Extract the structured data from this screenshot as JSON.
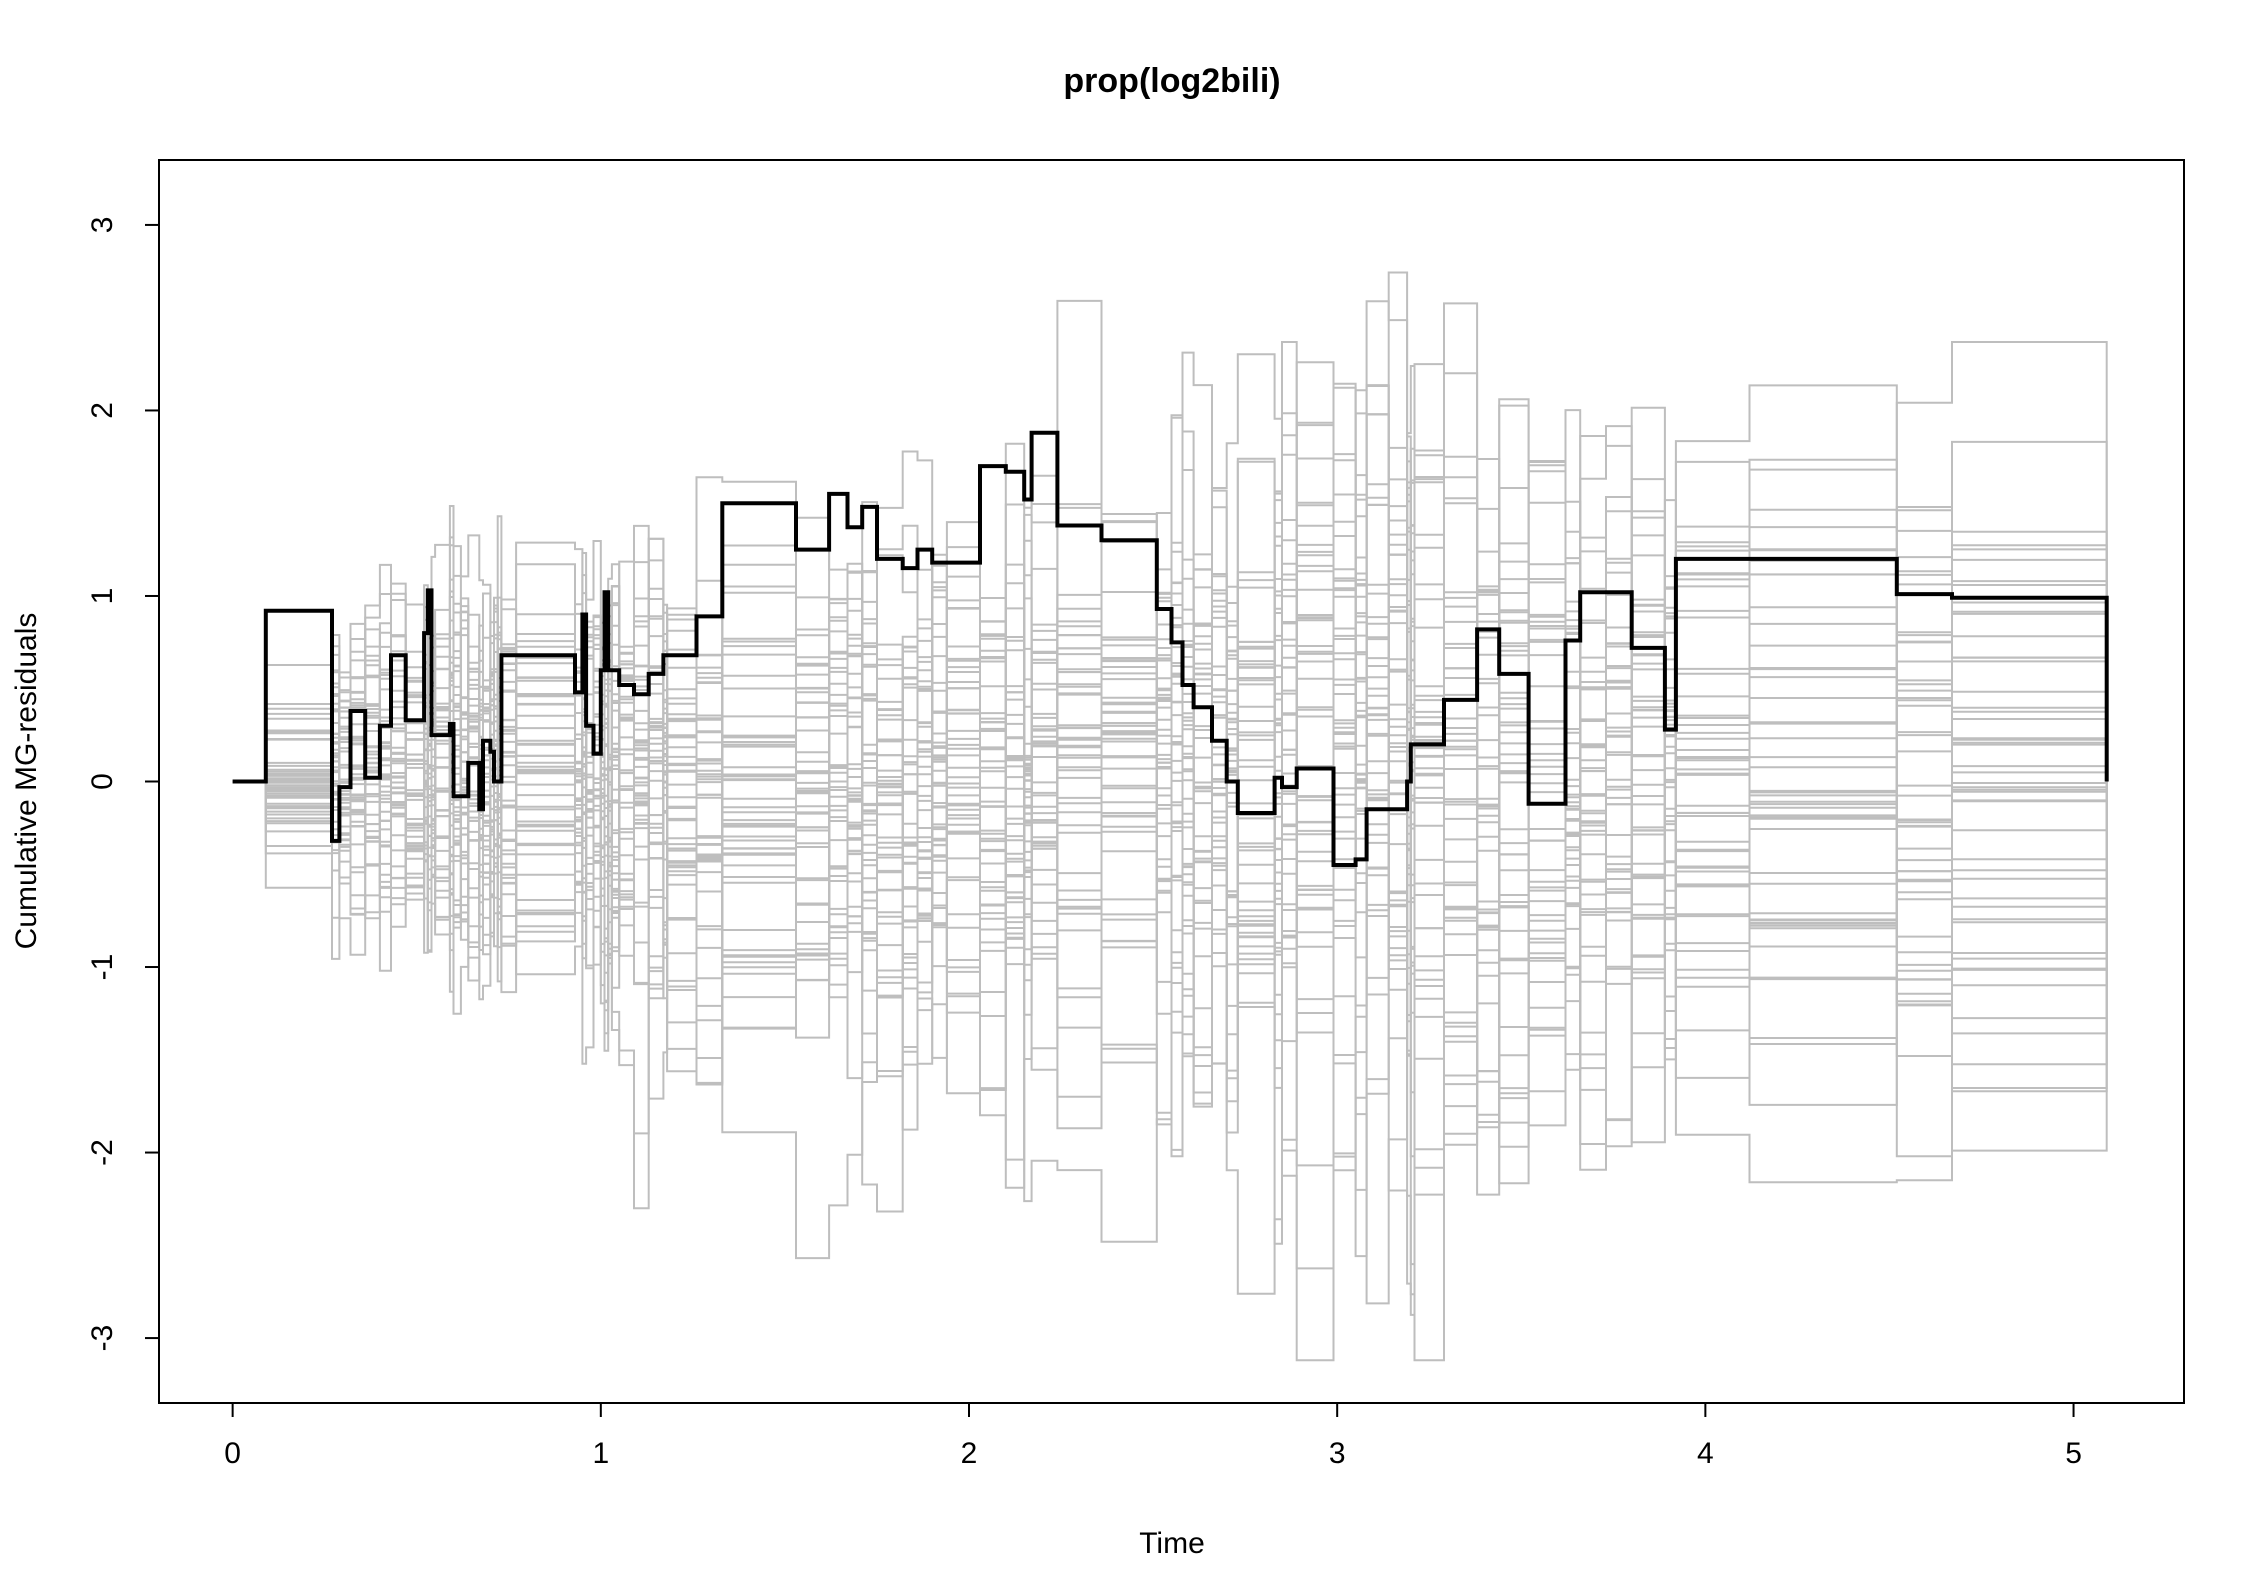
{
  "chart_data": {
    "type": "line",
    "title": "prop(log2bili)",
    "xlabel": "Time",
    "ylabel": "Cumulative MG-residuals",
    "xlim": [
      -0.2,
      5.3
    ],
    "ylim": [
      -3.35,
      3.35
    ],
    "xticks": [
      0,
      1,
      2,
      3,
      4,
      5
    ],
    "yticks": [
      -3,
      -2,
      -1,
      0,
      1,
      2,
      3
    ],
    "grid": false,
    "legend": "none",
    "colors": {
      "observed": "#000000",
      "simulated": "#bebebe",
      "axis": "#000000"
    },
    "observed": {
      "x": [
        0,
        0.09,
        0.27,
        0.29,
        0.32,
        0.36,
        0.4,
        0.43,
        0.47,
        0.52,
        0.53,
        0.54,
        0.55,
        0.59,
        0.6,
        0.62,
        0.64,
        0.67,
        0.68,
        0.7,
        0.71,
        0.72,
        0.73,
        0.77,
        0.93,
        0.95,
        0.96,
        0.98,
        1,
        1.01,
        1.02,
        1.03,
        1.05,
        1.09,
        1.13,
        1.17,
        1.18,
        1.26,
        1.33,
        1.53,
        1.62,
        1.67,
        1.71,
        1.75,
        1.82,
        1.86,
        1.9,
        1.94,
        2.03,
        2.1,
        2.15,
        2.17,
        2.24,
        2.36,
        2.51,
        2.55,
        2.58,
        2.61,
        2.66,
        2.7,
        2.73,
        2.83,
        2.85,
        2.89,
        2.99,
        3.05,
        3.08,
        3.14,
        3.19,
        3.2,
        3.21,
        3.29,
        3.38,
        3.44,
        3.52,
        3.62,
        3.66,
        3.73,
        3.8,
        3.89,
        3.92,
        4.12,
        4.52,
        4.67,
        5.09
      ],
      "y": [
        0,
        0.92,
        -0.32,
        -0.03,
        0.38,
        0.02,
        0.3,
        0.68,
        0.33,
        0.8,
        1.03,
        0.25,
        0.25,
        0.31,
        -0.08,
        -0.08,
        0.1,
        -0.15,
        0.22,
        0.16,
        0.0,
        0.0,
        0.68,
        0.68,
        0.48,
        0.9,
        0.3,
        0.15,
        0.6,
        1.02,
        0.6,
        0.6,
        0.52,
        0.47,
        0.58,
        0.68,
        0.68,
        0.89,
        1.5,
        1.25,
        1.55,
        1.37,
        1.48,
        1.2,
        1.15,
        1.25,
        1.18,
        1.18,
        1.7,
        1.67,
        1.52,
        1.88,
        1.38,
        1.3,
        0.93,
        0.75,
        0.52,
        0.4,
        0.22,
        0.0,
        -0.17,
        0.02,
        -0.03,
        0.07,
        -0.45,
        -0.42,
        -0.15,
        -0.15,
        0.0,
        0.2,
        0.2,
        0.44,
        0.82,
        0.58,
        -0.12,
        0.76,
        1.02,
        1.02,
        0.72,
        0.28,
        1.2,
        1.2,
        1.01,
        0.99,
        0.0
      ]
    },
    "simulated_count": 50,
    "simulated_extents": {
      "xmax": 5.09,
      "ymin": -3.12,
      "ymax": 2.75
    }
  }
}
